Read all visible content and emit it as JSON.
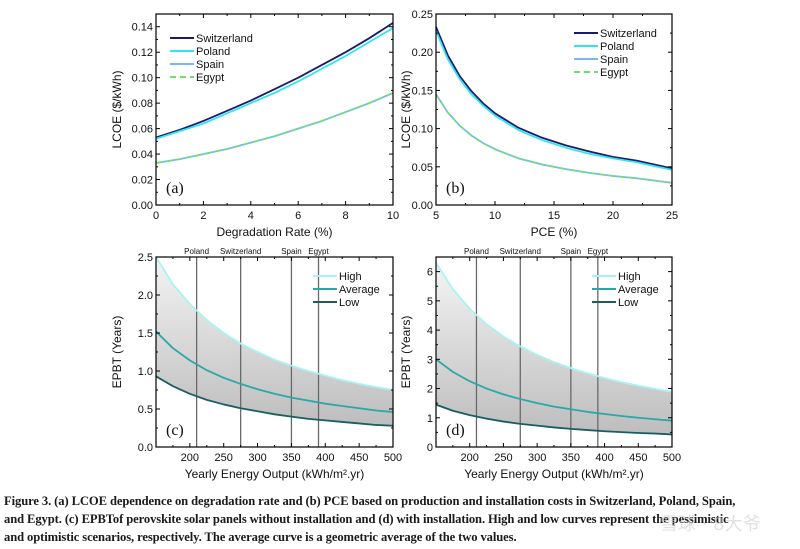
{
  "caption": {
    "lines": [
      "Figure 3. (a) LCOE dependence on degradation rate and (b) PCE based on production and installation costs in Switzerland, Poland, Spain,",
      "and Egypt. (c) EPBTof perovskite solar panels without installation and (d) with installation. High and low curves represent the pessimistic",
      "and optimistic scenarios, respectively. The average curve is a geometric average of the two values."
    ]
  },
  "watermark": "雪球 · 8大爷",
  "chart_data": [
    {
      "id": "a",
      "type": "line",
      "panel_label": "(a)",
      "title": "",
      "xlabel": "Degradation Rate (%)",
      "ylabel": "LCOE ($/kWh)",
      "xlim": [
        0,
        10
      ],
      "ylim": [
        0,
        0.15
      ],
      "xticks": [
        0,
        2,
        4,
        6,
        8,
        10
      ],
      "xtick_labels": [
        "0",
        "2",
        "4",
        "6",
        "8",
        "10"
      ],
      "yticks": [
        0,
        0.02,
        0.04,
        0.06,
        0.08,
        0.1,
        0.12,
        0.14
      ],
      "ytick_labels": [
        "0.00",
        "0.02",
        "0.04",
        "0.06",
        "0.08",
        "0.10",
        "0.12",
        "0.14"
      ],
      "legend_position": "top-left",
      "x": [
        0,
        1,
        2,
        3,
        4,
        5,
        6,
        7,
        8,
        9,
        10
      ],
      "series": [
        {
          "name": "Switzerland",
          "color": "#1a1a6e",
          "dash": false,
          "values": [
            0.053,
            0.059,
            0.066,
            0.074,
            0.082,
            0.091,
            0.1,
            0.11,
            0.12,
            0.131,
            0.143
          ]
        },
        {
          "name": "Poland",
          "color": "#2ee6f0",
          "dash": false,
          "values": [
            0.052,
            0.058,
            0.064,
            0.072,
            0.08,
            0.088,
            0.097,
            0.107,
            0.117,
            0.128,
            0.139
          ]
        },
        {
          "name": "Spain",
          "color": "#7ab8f0",
          "dash": false,
          "values": [
            0.033,
            0.036,
            0.04,
            0.044,
            0.049,
            0.054,
            0.06,
            0.066,
            0.073,
            0.08,
            0.088
          ]
        },
        {
          "name": "Egypt",
          "color": "#6ee06e",
          "dash": true,
          "values": [
            0.033,
            0.036,
            0.04,
            0.044,
            0.049,
            0.054,
            0.06,
            0.066,
            0.073,
            0.08,
            0.088
          ]
        }
      ]
    },
    {
      "id": "b",
      "type": "line",
      "panel_label": "(b)",
      "title": "",
      "xlabel": "PCE (%)",
      "ylabel": "LCOE ($/kWh)",
      "xlim": [
        5,
        25
      ],
      "ylim": [
        0,
        0.25
      ],
      "xticks": [
        5,
        10,
        15,
        20,
        25
      ],
      "xtick_labels": [
        "5",
        "10",
        "15",
        "20",
        "25"
      ],
      "yticks": [
        0,
        0.05,
        0.1,
        0.15,
        0.2,
        0.25
      ],
      "ytick_labels": [
        "0.00",
        "0.05",
        "0.10",
        "0.15",
        "0.20",
        "0.25"
      ],
      "legend_position": "top-right",
      "x": [
        5,
        6,
        7,
        8,
        9,
        10,
        12,
        14,
        16,
        18,
        20,
        22,
        25
      ],
      "series": [
        {
          "name": "Switzerland",
          "color": "#1a1a6e",
          "dash": false,
          "values": [
            0.233,
            0.196,
            0.169,
            0.149,
            0.133,
            0.12,
            0.101,
            0.088,
            0.078,
            0.07,
            0.063,
            0.058,
            0.048
          ]
        },
        {
          "name": "Poland",
          "color": "#2ee6f0",
          "dash": false,
          "values": [
            0.228,
            0.191,
            0.165,
            0.145,
            0.13,
            0.117,
            0.098,
            0.085,
            0.075,
            0.067,
            0.061,
            0.056,
            0.046
          ]
        },
        {
          "name": "Spain",
          "color": "#7ab8f0",
          "dash": false,
          "values": [
            0.145,
            0.121,
            0.104,
            0.091,
            0.081,
            0.073,
            0.061,
            0.053,
            0.047,
            0.042,
            0.038,
            0.035,
            0.029
          ]
        },
        {
          "name": "Egypt",
          "color": "#6ee06e",
          "dash": true,
          "values": [
            0.145,
            0.121,
            0.104,
            0.091,
            0.081,
            0.073,
            0.061,
            0.053,
            0.047,
            0.042,
            0.038,
            0.035,
            0.029
          ]
        }
      ]
    },
    {
      "id": "c",
      "type": "area",
      "panel_label": "(c)",
      "title": "",
      "xlabel": "Yearly Energy Output (kWh/m².yr)",
      "ylabel": "EPBT (Years)",
      "xlim": [
        150,
        500
      ],
      "ylim": [
        0,
        2.5
      ],
      "xticks": [
        200,
        250,
        300,
        350,
        400,
        450,
        500
      ],
      "xtick_labels": [
        "200",
        "250",
        "300",
        "350",
        "400",
        "450",
        "500"
      ],
      "yticks": [
        0,
        0.5,
        1.0,
        1.5,
        2.0,
        2.5
      ],
      "ytick_labels": [
        "0.0",
        "0.5",
        "1.0",
        "1.5",
        "2.0",
        "2.5"
      ],
      "legend_position": "top-right",
      "x": [
        150,
        175,
        200,
        225,
        250,
        275,
        300,
        325,
        350,
        375,
        400,
        425,
        450,
        475,
        500
      ],
      "series": [
        {
          "name": "High",
          "color": "#a8f4f4",
          "values": [
            2.5,
            2.14,
            1.88,
            1.67,
            1.5,
            1.36,
            1.25,
            1.15,
            1.07,
            1.0,
            0.94,
            0.88,
            0.83,
            0.79,
            0.75
          ]
        },
        {
          "name": "Average",
          "color": "#2aa8a8",
          "values": [
            1.52,
            1.3,
            1.14,
            1.01,
            0.91,
            0.83,
            0.76,
            0.7,
            0.65,
            0.61,
            0.57,
            0.54,
            0.51,
            0.48,
            0.46
          ]
        },
        {
          "name": "Low",
          "color": "#1a5e60",
          "values": [
            0.93,
            0.8,
            0.7,
            0.62,
            0.56,
            0.51,
            0.47,
            0.43,
            0.4,
            0.37,
            0.35,
            0.33,
            0.31,
            0.29,
            0.28
          ]
        }
      ],
      "vlines": [
        {
          "label": "Poland",
          "x": 210
        },
        {
          "label": "Switzerland",
          "x": 275
        },
        {
          "label": "Spain",
          "x": 350
        },
        {
          "label": "Egypt",
          "x": 390
        }
      ]
    },
    {
      "id": "d",
      "type": "area",
      "panel_label": "(d)",
      "title": "",
      "xlabel": "Yearly Energy Output (kWh/m².yr)",
      "ylabel": "EPBT (Years)",
      "xlim": [
        150,
        500
      ],
      "ylim": [
        0,
        6.5
      ],
      "xticks": [
        200,
        250,
        300,
        350,
        400,
        450,
        500
      ],
      "xtick_labels": [
        "200",
        "250",
        "300",
        "350",
        "400",
        "450",
        "500"
      ],
      "yticks": [
        0,
        1,
        2,
        3,
        4,
        5,
        6
      ],
      "ytick_labels": [
        "0",
        "1",
        "2",
        "3",
        "4",
        "5",
        "6"
      ],
      "legend_position": "top-right",
      "x": [
        150,
        175,
        200,
        225,
        250,
        275,
        300,
        325,
        350,
        375,
        400,
        425,
        450,
        475,
        500
      ],
      "series": [
        {
          "name": "High",
          "color": "#a8f4f4",
          "values": [
            6.3,
            5.4,
            4.73,
            4.2,
            3.78,
            3.44,
            3.15,
            2.91,
            2.7,
            2.52,
            2.36,
            2.22,
            2.1,
            1.99,
            1.89
          ]
        },
        {
          "name": "Average",
          "color": "#2aa8a8",
          "values": [
            3.0,
            2.57,
            2.25,
            2.0,
            1.8,
            1.64,
            1.5,
            1.38,
            1.29,
            1.2,
            1.13,
            1.06,
            1.0,
            0.95,
            0.9
          ]
        },
        {
          "name": "Low",
          "color": "#1a5e60",
          "values": [
            1.45,
            1.24,
            1.09,
            0.97,
            0.87,
            0.79,
            0.73,
            0.67,
            0.62,
            0.58,
            0.54,
            0.51,
            0.48,
            0.46,
            0.43
          ]
        }
      ],
      "vlines": [
        {
          "label": "Poland",
          "x": 210
        },
        {
          "label": "Switzerland",
          "x": 275
        },
        {
          "label": "Spain",
          "x": 350
        },
        {
          "label": "Egypt",
          "x": 390
        }
      ]
    }
  ]
}
